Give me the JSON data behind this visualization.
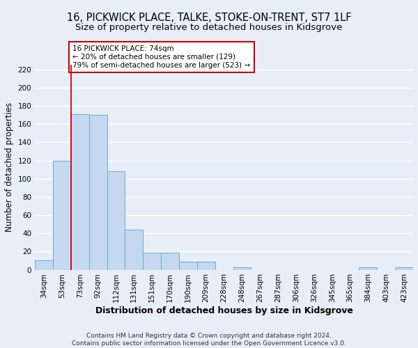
{
  "title": "16, PICKWICK PLACE, TALKE, STOKE-ON-TRENT, ST7 1LF",
  "subtitle": "Size of property relative to detached houses in Kidsgrove",
  "xlabel": "Distribution of detached houses by size in Kidsgrove",
  "ylabel": "Number of detached properties",
  "bar_labels": [
    "34sqm",
    "53sqm",
    "73sqm",
    "92sqm",
    "112sqm",
    "131sqm",
    "151sqm",
    "170sqm",
    "190sqm",
    "209sqm",
    "228sqm",
    "248sqm",
    "267sqm",
    "287sqm",
    "306sqm",
    "326sqm",
    "345sqm",
    "365sqm",
    "384sqm",
    "403sqm",
    "423sqm"
  ],
  "bar_heights": [
    10,
    120,
    171,
    170,
    108,
    44,
    19,
    19,
    9,
    9,
    0,
    3,
    0,
    0,
    0,
    0,
    0,
    0,
    3,
    0,
    3
  ],
  "bar_color": "#c5d8f0",
  "bar_edgecolor": "#6aaad4",
  "bar_width": 1.0,
  "vline_x": 2,
  "vline_color": "#cc0000",
  "annotation_text": "16 PICKWICK PLACE: 74sqm\n← 20% of detached houses are smaller (129)\n79% of semi-detached houses are larger (523) →",
  "annotation_box_edgecolor": "#cc0000",
  "annotation_box_facecolor": "#ffffff",
  "ylim": [
    0,
    225
  ],
  "yticks": [
    0,
    20,
    40,
    60,
    80,
    100,
    120,
    140,
    160,
    180,
    200,
    220
  ],
  "footer": "Contains HM Land Registry data © Crown copyright and database right 2024.\nContains public sector information licensed under the Open Government Licence v3.0.",
  "bg_color": "#e8eef7",
  "plot_bg_color": "#e8eef7",
  "grid_color": "#ffffff",
  "title_fontsize": 10.5,
  "subtitle_fontsize": 9.5,
  "xlabel_fontsize": 9,
  "ylabel_fontsize": 8.5,
  "tick_fontsize": 7.5,
  "footer_fontsize": 6.5
}
